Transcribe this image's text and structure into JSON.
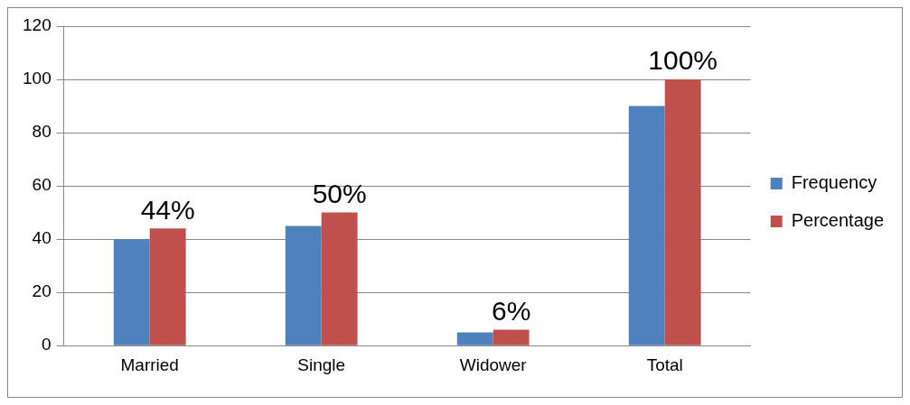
{
  "chart_data": {
    "type": "bar",
    "categories": [
      "Married",
      "Single",
      "Widower",
      "Total"
    ],
    "series": [
      {
        "name": "Frequency",
        "color": "#4f81bd",
        "values": [
          40,
          45,
          5,
          90
        ]
      },
      {
        "name": "Percentage",
        "color": "#c0504d",
        "values": [
          44,
          50,
          6,
          100
        ],
        "value_labels": [
          "44%",
          "50%",
          "6%",
          "100%"
        ]
      }
    ],
    "ylim": [
      0,
      120
    ],
    "yticks": [
      0,
      20,
      40,
      60,
      80,
      100,
      120
    ],
    "grid": "y",
    "legend": "right"
  }
}
